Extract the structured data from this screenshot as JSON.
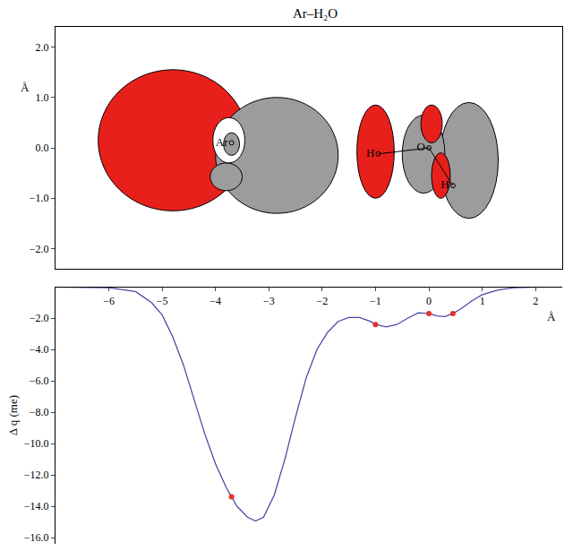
{
  "chart_data": [
    {
      "type": "contour",
      "title": "Ar–H₂O",
      "y_label": "Å",
      "tick_labels": "y",
      "xlim": [
        -7,
        2.5
      ],
      "ylim": [
        -2.4,
        2.4
      ],
      "yticks": [
        {
          "value": 2,
          "label": "2.0"
        },
        {
          "value": 1,
          "label": "1.0"
        },
        {
          "value": 0,
          "label": "0.0"
        },
        {
          "value": -1,
          "label": "−1.0"
        },
        {
          "value": -2,
          "label": "−2.0"
        }
      ],
      "atoms": [
        {
          "label": "Ar",
          "x": -3.7,
          "y": 0.1
        },
        {
          "label": "H",
          "x": -0.95,
          "y": -0.12
        },
        {
          "label": "O",
          "x": 0,
          "y": 0
        },
        {
          "label": "H",
          "x": 0.45,
          "y": -0.75
        }
      ]
    },
    {
      "type": "line",
      "x_label": "Å",
      "y_label": "Δ q (me)",
      "xlim": [
        -7,
        2.5
      ],
      "ylim": [
        -16.4,
        0
      ],
      "xticks": [
        {
          "value": -6,
          "label": "−6"
        },
        {
          "value": -5,
          "label": "−5"
        },
        {
          "value": -4,
          "label": "−4"
        },
        {
          "value": -3,
          "label": "−3"
        },
        {
          "value": -2,
          "label": "−2"
        },
        {
          "value": -1,
          "label": "−1"
        },
        0,
        1,
        2
      ],
      "yticks": [
        {
          "value": -2,
          "label": "−2.0"
        },
        {
          "value": -4,
          "label": "−4.0"
        },
        {
          "value": -6,
          "label": "−6.0"
        },
        {
          "value": -8,
          "label": "−8.0"
        },
        {
          "value": -10,
          "label": "−10.0"
        },
        {
          "value": -12,
          "label": "−12.0"
        },
        {
          "value": -14,
          "label": "−14.0"
        },
        {
          "value": -16,
          "label": "−16.0"
        }
      ],
      "series": [
        {
          "type": "line",
          "color": "#4a4aa8",
          "x": [
            -7,
            -6.5,
            -6,
            -5.5,
            -5.2,
            -5,
            -4.8,
            -4.6,
            -4.4,
            -4.2,
            -4,
            -3.8,
            -3.7,
            -3.6,
            -3.4,
            -3.25,
            -3.1,
            -2.9,
            -2.7,
            -2.5,
            -2.3,
            -2.1,
            -1.9,
            -1.7,
            -1.5,
            -1.3,
            -1.1,
            -1,
            -0.8,
            -0.6,
            -0.4,
            -0.2,
            0,
            0.15,
            0.3,
            0.45,
            0.6,
            0.8,
            1,
            1.3,
            1.6,
            2,
            2.5
          ],
          "values": [
            0,
            -0.02,
            -0.05,
            -0.3,
            -1.0,
            -1.8,
            -3.2,
            -5.0,
            -7.2,
            -9.4,
            -11.3,
            -12.8,
            -13.4,
            -14.0,
            -14.7,
            -14.95,
            -14.7,
            -13.3,
            -11.0,
            -8.3,
            -5.8,
            -4.0,
            -2.9,
            -2.2,
            -1.95,
            -1.95,
            -2.2,
            -2.4,
            -2.55,
            -2.4,
            -2.0,
            -1.65,
            -1.7,
            -1.85,
            -1.9,
            -1.7,
            -1.4,
            -0.9,
            -0.5,
            -0.2,
            -0.05,
            0,
            0
          ]
        },
        {
          "type": "scatter",
          "color": "#e8302a",
          "marker": "circle",
          "x": [
            -3.7,
            -1,
            0,
            0.45
          ],
          "values": [
            -13.4,
            -2.4,
            -1.7,
            -1.7
          ]
        }
      ]
    }
  ]
}
